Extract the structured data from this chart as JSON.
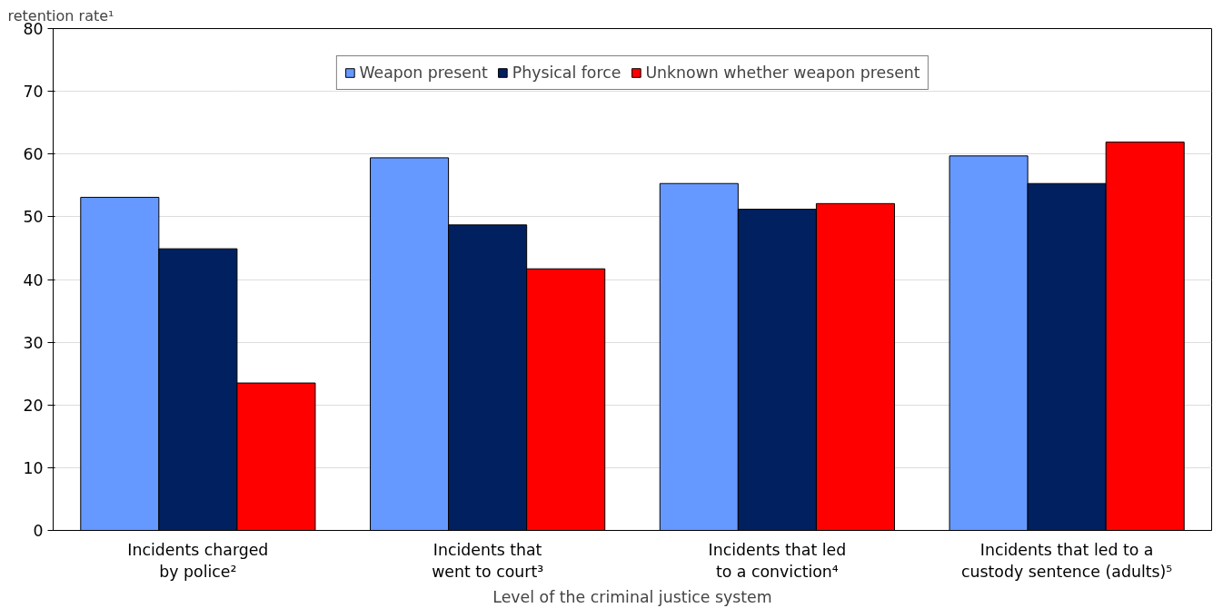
{
  "chart_data": {
    "type": "bar",
    "ylabel": "retention rate¹",
    "xlabel": "Level of the criminal justice system",
    "categories": [
      "Incidents charged\nby police²",
      "Incidents that\nwent to court³",
      "Incidents that led\nto a conviction⁴",
      "Incidents that led to a\ncustody sentence (adults)⁵"
    ],
    "series": [
      {
        "name": "Weapon present",
        "color": "#6699ff",
        "values": [
          53.1,
          59.4,
          55.3,
          59.7
        ]
      },
      {
        "name": "Physical force",
        "color": "#002060",
        "values": [
          44.9,
          48.7,
          51.2,
          55.3
        ]
      },
      {
        "name": "Unknown whether weapon present",
        "color": "#ff0000",
        "values": [
          23.5,
          41.7,
          52.1,
          61.9
        ]
      }
    ],
    "ylim": [
      0,
      80
    ],
    "yticks": [
      0,
      10,
      20,
      30,
      40,
      50,
      60,
      70,
      80
    ],
    "grid": "y",
    "legend": "top"
  }
}
